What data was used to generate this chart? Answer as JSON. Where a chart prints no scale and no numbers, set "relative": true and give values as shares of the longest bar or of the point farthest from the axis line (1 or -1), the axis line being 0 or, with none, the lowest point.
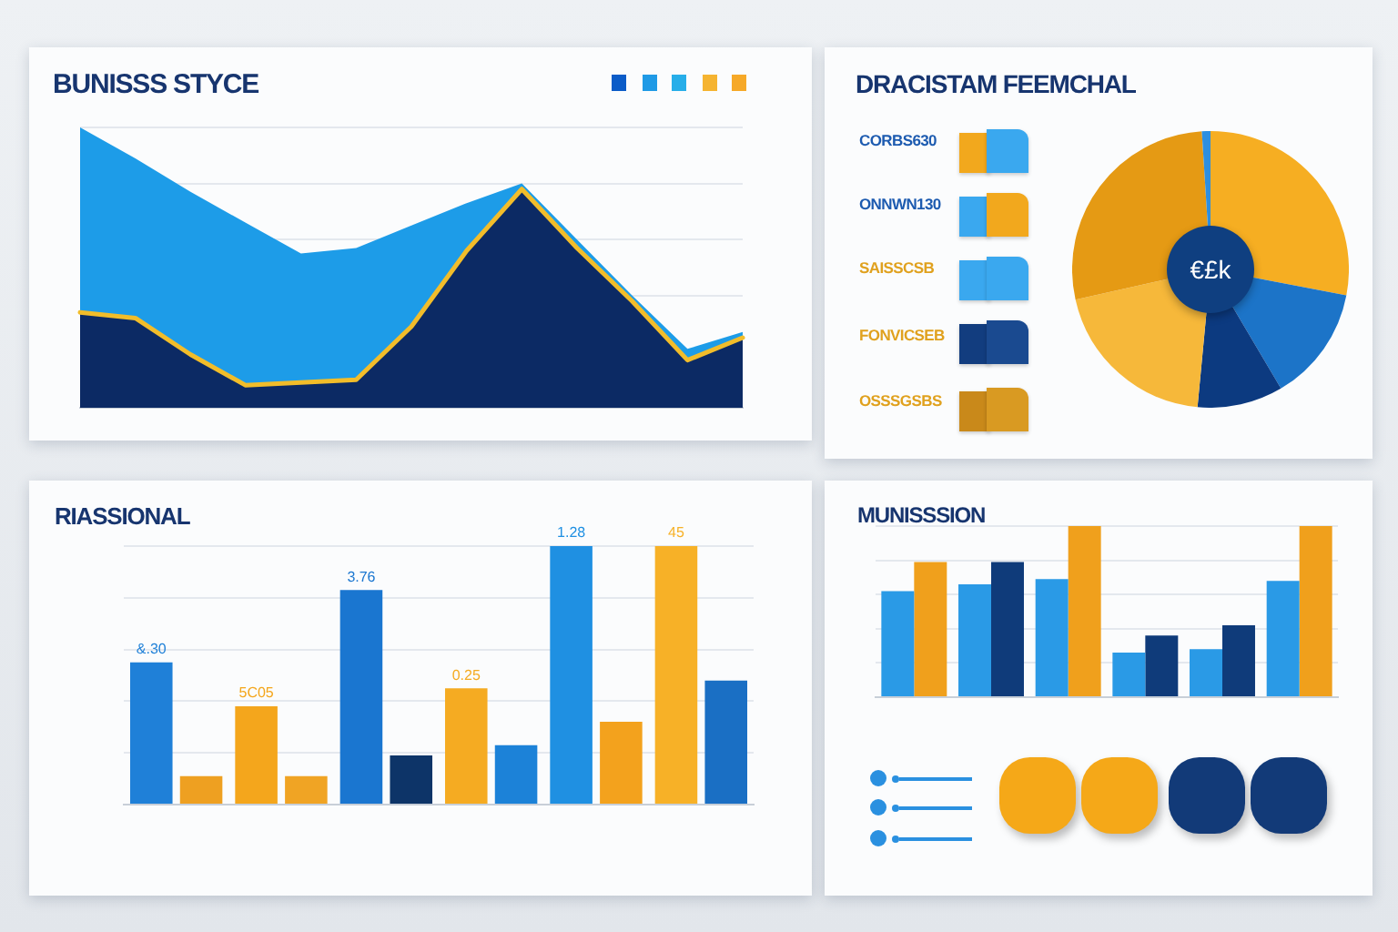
{
  "chart_data": [
    {
      "type": "area",
      "title": "BUNISSS STYCE",
      "categories": [
        null,
        null,
        null,
        null,
        null,
        null,
        null,
        null,
        null,
        null,
        null,
        null,
        null
      ],
      "relative": true,
      "grid": "y",
      "tick_labels": false,
      "series": [
        {
          "color": "#1d9ce8",
          "values": [
            1.0,
            0.89,
            0.77,
            0.66,
            0.55,
            0.57,
            0.65,
            0.73,
            0.8,
            0.6,
            0.4,
            0.21,
            0.27
          ]
        },
        {
          "color": "#0c2a64",
          "values": [
            0.34,
            0.32,
            0.19,
            0.08,
            0.09,
            0.1,
            0.29,
            0.56,
            0.78,
            0.57,
            0.38,
            0.17,
            0.25
          ]
        },
        {
          "type": "line",
          "color": "#f2bd2a",
          "values": [
            0.34,
            0.32,
            0.19,
            0.08,
            0.09,
            0.1,
            0.29,
            0.56,
            0.78,
            0.57,
            0.38,
            0.17,
            0.25
          ]
        }
      ]
    },
    {
      "type": "donut",
      "title": "DRACISTAM FEEMCHAL",
      "categories": [
        null,
        null,
        null,
        null,
        null,
        null
      ],
      "values": [
        28,
        13.5,
        10,
        20,
        27.5,
        1
      ],
      "colors": [
        "#f6ae22",
        "#1c74c8",
        "#0c3a80",
        "#f6b83a",
        "#e59a14",
        "#2d8fe0"
      ],
      "annotations": [
        "€£k",
        "CORBS630",
        "ONNWN130",
        "SAISSCSB",
        "FONVICSEB",
        "OSSSGSBS"
      ]
    },
    {
      "type": "bar",
      "title": "RIASSIONAL",
      "categories": [
        null,
        null,
        null,
        null,
        null,
        null
      ],
      "relative": true,
      "grid": "y",
      "tick_labels": false,
      "series": [
        {
          "colors": [
            "#1f80d8",
            "#f4a61c",
            "#1a76d0",
            "#f5ab22",
            "#1f90e2",
            "#f7b127"
          ],
          "values": [
            0.55,
            0.38,
            0.83,
            0.45,
            1.0,
            1.0
          ]
        },
        {
          "colors": [
            "#eea021",
            "#f0a424",
            "#0d3468",
            "#1c82d8",
            "#f3a21d",
            "#1a6fc4"
          ],
          "values": [
            0.11,
            0.11,
            0.19,
            0.23,
            0.32,
            0.48
          ]
        }
      ],
      "annotations": [
        "&.30",
        "5C05",
        "3.76",
        "0.25",
        "1.28",
        "45"
      ]
    },
    {
      "type": "bar",
      "title": "MUNISSSION",
      "categories": [
        null,
        null,
        null,
        null,
        null,
        null
      ],
      "relative": true,
      "grid": "y",
      "tick_labels": false,
      "series": [
        {
          "color": "#2a9ae6",
          "values": [
            0.62,
            0.66,
            0.69,
            0.26,
            0.28,
            0.68
          ]
        },
        {
          "colors": [
            "#f0a01c",
            "#0f3b7a",
            "#f0a01c",
            "#0f3b7a",
            "#0f3b7a",
            "#f0a01c"
          ],
          "values": [
            0.79,
            0.79,
            1.0,
            0.36,
            0.42,
            1.0
          ]
        }
      ]
    }
  ]
}
